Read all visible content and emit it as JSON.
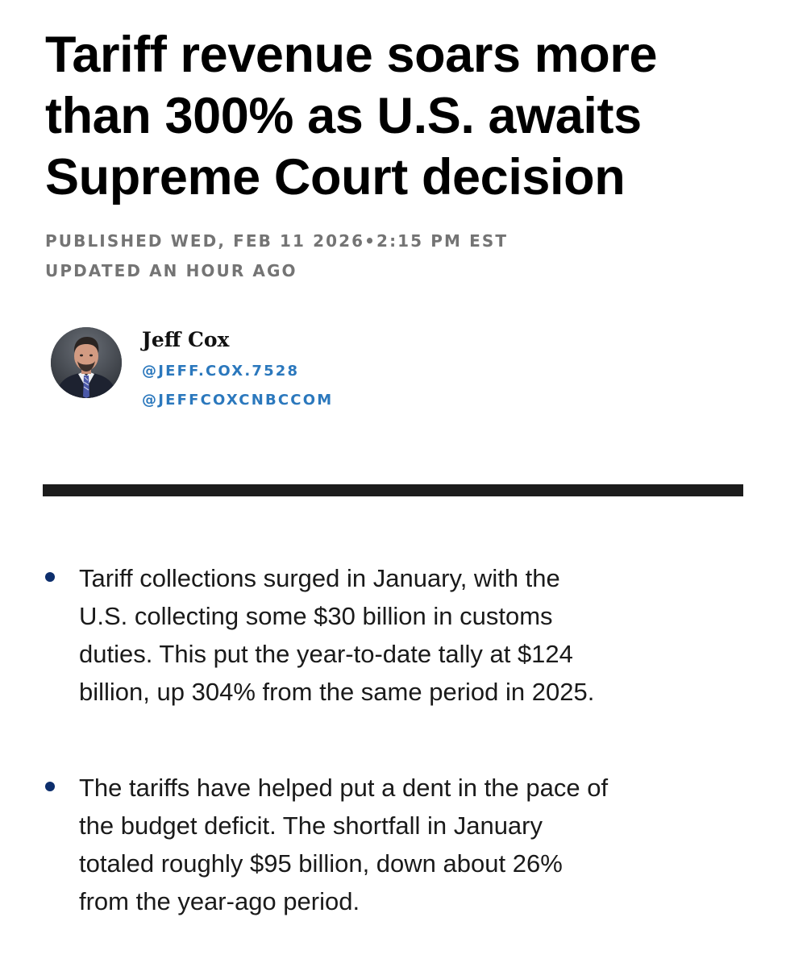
{
  "article": {
    "headline_lines": [
      "Tariff revenue soars more",
      "than 300% as U.S. awaits",
      "Supreme Court decision"
    ],
    "published": "PUBLISHED WED, FEB 11 2026•2:15 PM EST",
    "updated": "UPDATED AN HOUR AGO"
  },
  "author": {
    "name": "Jeff Cox",
    "handles": [
      "@JEFF.COX.7528",
      "@JEFFCOXCNBCCOM"
    ]
  },
  "key_points": [
    {
      "lines": [
        "Tariff collections surged in January, with the",
        "U.S. collecting some $30 billion in customs",
        "duties. This put the year-to-date tally at $124",
        "billion, up 304% from the same period in 2025."
      ]
    },
    {
      "lines": [
        "The tariffs have helped put a dent in the pace of",
        "the budget deficit. The shortfall in January",
        "totaled roughly $95 billion, down about 26%",
        "from the year-ago period."
      ]
    }
  ],
  "colors": {
    "link": "#2b78bd",
    "bullet": "#0d2e6c",
    "meta_text": "#747474",
    "divider": "#1c1c1c"
  }
}
